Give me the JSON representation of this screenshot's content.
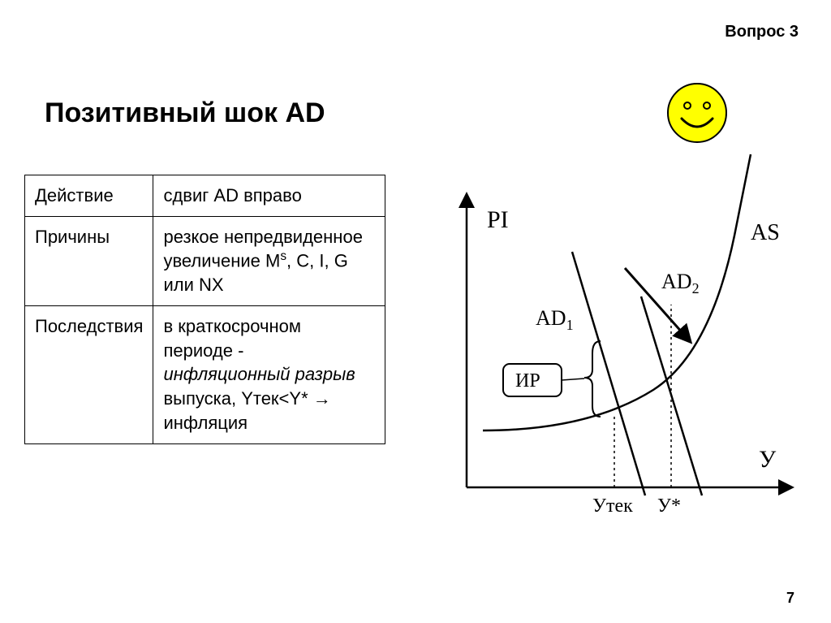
{
  "header": {
    "question_label": "Вопрос 3"
  },
  "title": "Позитивный шок AD",
  "table": {
    "rows": [
      {
        "label": "Действие",
        "value_html": "сдвиг AD вправо"
      },
      {
        "label": "Причины",
        "value_html": "резкое непредвиденное увеличение M<span class='sup'>s</span>, C, I, G или NX"
      },
      {
        "label": "Последствия",
        "value_html": "в краткосрочном периоде - <i>инфляционный разрыв</i> выпуска, Yтек&lt;Y* → инфляция"
      }
    ]
  },
  "chart": {
    "type": "economics-diagram",
    "background_color": "#ffffff",
    "stroke_color": "#000000",
    "axes": {
      "y_label": "PI",
      "x_label": "У",
      "x_ticks": [
        "Утек",
        "У*"
      ]
    },
    "curves": {
      "AS": {
        "label": "AS"
      },
      "AD1": {
        "label": "AD₁"
      },
      "AD2": {
        "label": "AD₂"
      }
    },
    "callout": {
      "text": "ИР"
    },
    "smiley": {
      "fill": "#ffff00",
      "stroke": "#000000",
      "eye_color": "#000000"
    }
  },
  "page_number": "7"
}
